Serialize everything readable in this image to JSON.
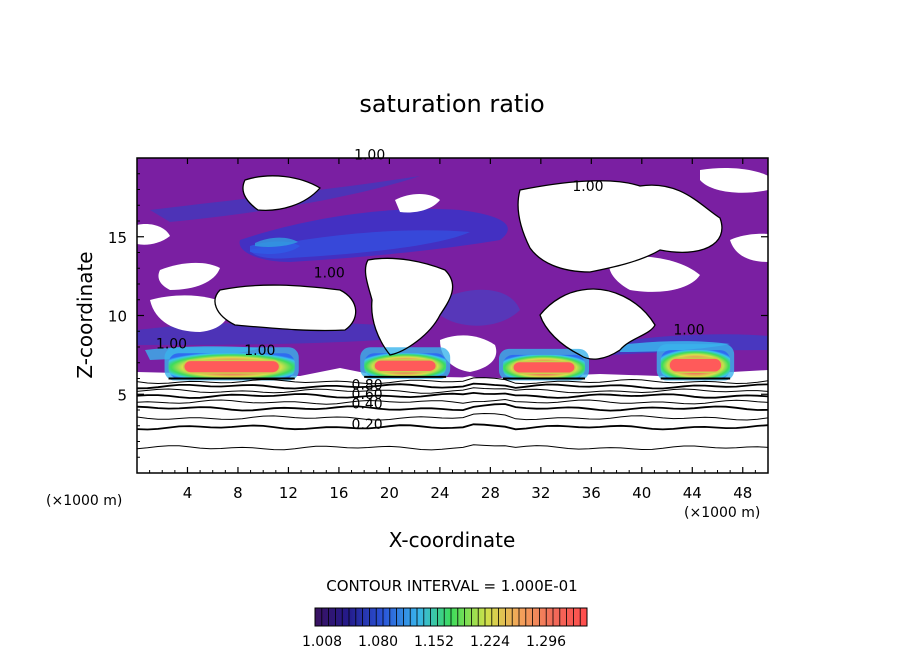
{
  "chart_data": {
    "type": "heatmap",
    "title": "saturation ratio",
    "xlabel": "X-coordinate",
    "ylabel": "Z-coordinate",
    "x_unit": "(×1000 m)",
    "x_unit_right": "(×1000 m)",
    "xlim": [
      0,
      50
    ],
    "ylim": [
      0,
      20
    ],
    "x_ticks": [
      4,
      8,
      12,
      16,
      20,
      24,
      28,
      32,
      36,
      40,
      44,
      48
    ],
    "y_ticks": [
      5,
      10,
      15
    ],
    "contour_interval_text": "CONTOUR INTERVAL = 1.000E-01",
    "colorbar": {
      "tick_labels": [
        "1.008",
        "1.080",
        "1.152",
        "1.224",
        "1.296"
      ],
      "colors": [
        "#6a1f8e",
        "#2626b8",
        "#2f6cf0",
        "#39c4f0",
        "#3ddc5c",
        "#d8e04a",
        "#f07a4a",
        "#ff5050"
      ]
    },
    "subsaturated_contours": [
      {
        "value": 0.9,
        "z": 5.8
      },
      {
        "value": 0.8,
        "z": 5.5
      },
      {
        "value": 0.7,
        "z": 5.2
      },
      {
        "value": 0.6,
        "z": 4.9
      },
      {
        "value": 0.5,
        "z": 4.5
      },
      {
        "value": 0.4,
        "z": 4.1
      },
      {
        "value": 0.3,
        "z": 3.5
      },
      {
        "value": 0.2,
        "z": 2.9
      },
      {
        "value": 0.1,
        "z": 1.6
      }
    ],
    "contour_labels": [
      {
        "text": "0.80",
        "x": 17.0,
        "z": 5.3
      },
      {
        "text": "0.60",
        "x": 17.0,
        "z": 4.7
      },
      {
        "text": "0.40",
        "x": 17.0,
        "z": 4.1
      },
      {
        "text": "0.20",
        "x": 17.0,
        "z": 2.8
      },
      {
        "text": "1.00",
        "x": 17.2,
        "z": 19.9
      },
      {
        "text": "1.00",
        "x": 34.5,
        "z": 17.9
      },
      {
        "text": "1.00",
        "x": 14.0,
        "z": 12.4
      },
      {
        "text": "1.00",
        "x": 42.5,
        "z": 8.8
      },
      {
        "text": "1.00",
        "x": 8.5,
        "z": 7.5
      },
      {
        "text": "1.00",
        "x": 1.5,
        "z": 7.9
      }
    ],
    "supersaturated_cells": [
      {
        "x_range": [
          2.5,
          12.5
        ],
        "z_range": [
          6.0,
          7.6
        ],
        "peak": 1.3
      },
      {
        "x_range": [
          18.0,
          24.5
        ],
        "z_range": [
          6.1,
          7.6
        ],
        "peak": 1.25
      },
      {
        "x_range": [
          29.0,
          35.5
        ],
        "z_range": [
          6.0,
          7.5
        ],
        "peak": 1.3
      },
      {
        "x_range": [
          41.5,
          47.0
        ],
        "z_range": [
          6.0,
          7.8
        ],
        "peak": 1.3
      }
    ]
  }
}
